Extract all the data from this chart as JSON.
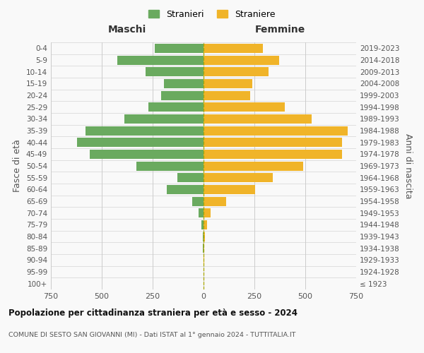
{
  "age_groups": [
    "100+",
    "95-99",
    "90-94",
    "85-89",
    "80-84",
    "75-79",
    "70-74",
    "65-69",
    "60-64",
    "55-59",
    "50-54",
    "45-49",
    "40-44",
    "35-39",
    "30-34",
    "25-29",
    "20-24",
    "15-19",
    "10-14",
    "5-9",
    "0-4"
  ],
  "birth_years": [
    "≤ 1923",
    "1924-1928",
    "1929-1933",
    "1934-1938",
    "1939-1943",
    "1944-1948",
    "1949-1953",
    "1954-1958",
    "1959-1963",
    "1964-1968",
    "1969-1973",
    "1974-1978",
    "1979-1983",
    "1984-1988",
    "1989-1993",
    "1994-1998",
    "1999-2003",
    "2004-2008",
    "2009-2013",
    "2014-2018",
    "2019-2023"
  ],
  "maschi": [
    0,
    0,
    0,
    3,
    5,
    10,
    25,
    55,
    180,
    130,
    330,
    560,
    620,
    580,
    390,
    270,
    210,
    195,
    285,
    425,
    240
  ],
  "femmine": [
    0,
    0,
    2,
    5,
    8,
    18,
    35,
    110,
    255,
    340,
    490,
    680,
    680,
    710,
    530,
    400,
    230,
    240,
    320,
    370,
    290
  ],
  "male_color": "#6aaa5f",
  "female_color": "#f0b429",
  "background_color": "#f9f9f9",
  "grid_color": "#cccccc",
  "title": "Popolazione per cittadinanza straniera per età e sesso - 2024",
  "subtitle": "COMUNE DI SESTO SAN GIOVANNI (MI) - Dati ISTAT al 1° gennaio 2024 - TUTTITALIA.IT",
  "xlabel_left": "Maschi",
  "xlabel_right": "Femmine",
  "ylabel_left": "Fasce di età",
  "ylabel_right": "Anni di nascita",
  "xlim": 750,
  "legend_stranieri": "Stranieri",
  "legend_straniere": "Straniere"
}
